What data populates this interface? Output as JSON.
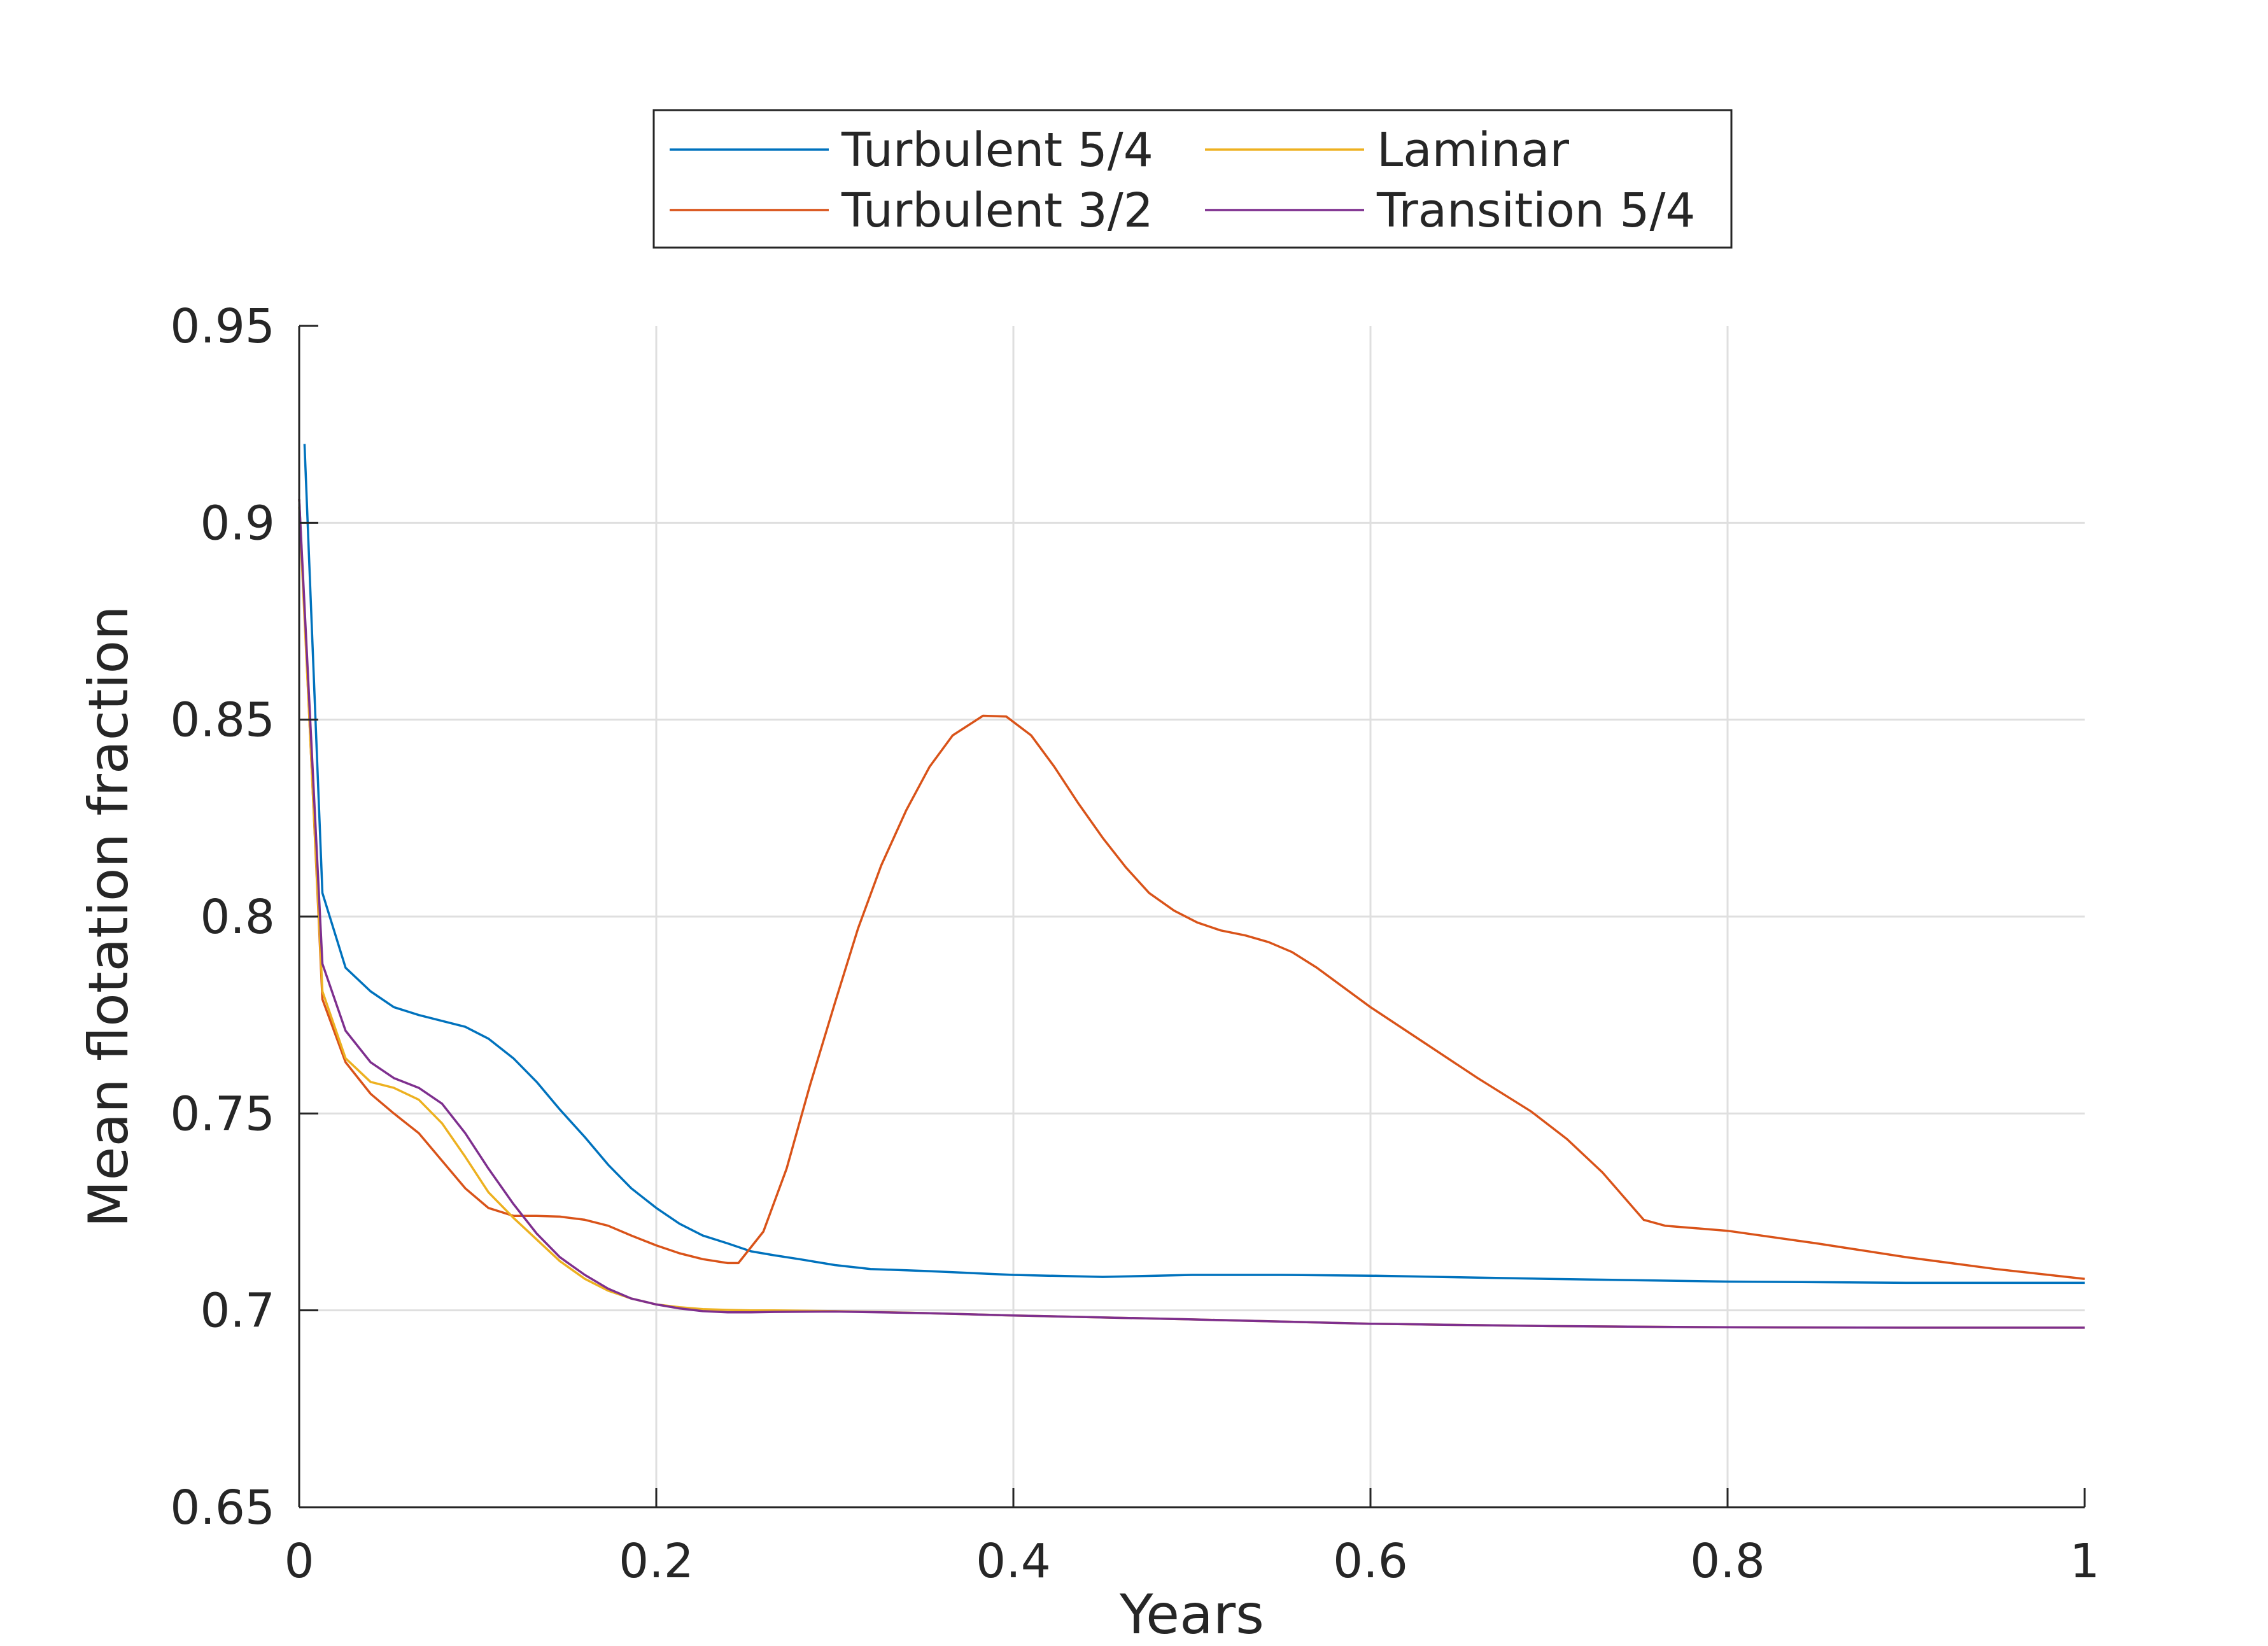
{
  "chart_data": {
    "type": "line",
    "title": "",
    "xlabel": "Years",
    "ylabel": "Mean flotation fraction",
    "xlim": [
      0,
      1
    ],
    "ylim": [
      0.65,
      0.95
    ],
    "grid": true,
    "legend_placement": "top-center (outside plot)",
    "legend_columns": 2,
    "x_ticks": [
      0,
      0.2,
      0.4,
      0.6,
      0.8,
      1
    ],
    "x_tick_labels": [
      "0",
      "0.2",
      "0.4",
      "0.6",
      "0.8",
      "1"
    ],
    "y_ticks": [
      0.65,
      0.7,
      0.75,
      0.8,
      0.85,
      0.9,
      0.95
    ],
    "y_tick_labels": [
      "0.65",
      "0.7",
      "0.75",
      "0.8",
      "0.85",
      "0.9",
      "0.95"
    ],
    "series": [
      {
        "name": "Turbulent 5/4",
        "color": "#0072bd",
        "x": [
          0.003,
          0.013,
          0.026,
          0.04,
          0.053,
          0.067,
          0.08,
          0.093,
          0.106,
          0.12,
          0.133,
          0.146,
          0.16,
          0.173,
          0.186,
          0.2,
          0.213,
          0.226,
          0.24,
          0.253,
          0.266,
          0.28,
          0.3,
          0.32,
          0.35,
          0.4,
          0.45,
          0.5,
          0.55,
          0.6,
          0.7,
          0.8,
          0.9,
          1.0
        ],
        "y": [
          0.92,
          0.806,
          0.787,
          0.781,
          0.777,
          0.775,
          0.7735,
          0.772,
          0.769,
          0.764,
          0.758,
          0.751,
          0.744,
          0.737,
          0.731,
          0.726,
          0.722,
          0.719,
          0.717,
          0.715,
          0.714,
          0.713,
          0.7115,
          0.7105,
          0.71,
          0.709,
          0.7085,
          0.709,
          0.709,
          0.7088,
          0.708,
          0.7073,
          0.707,
          0.707
        ]
      },
      {
        "name": "Turbulent 3/2",
        "color": "#d95319",
        "x": [
          0.0,
          0.013,
          0.026,
          0.04,
          0.053,
          0.067,
          0.08,
          0.093,
          0.106,
          0.12,
          0.133,
          0.146,
          0.16,
          0.173,
          0.186,
          0.2,
          0.213,
          0.226,
          0.24,
          0.246,
          0.26,
          0.273,
          0.286,
          0.3,
          0.313,
          0.326,
          0.34,
          0.353,
          0.366,
          0.383,
          0.396,
          0.41,
          0.423,
          0.436,
          0.45,
          0.463,
          0.476,
          0.49,
          0.503,
          0.516,
          0.53,
          0.543,
          0.556,
          0.57,
          0.6,
          0.63,
          0.66,
          0.69,
          0.71,
          0.73,
          0.753,
          0.765,
          0.8,
          0.85,
          0.9,
          0.95,
          1.0
        ],
        "y": [
          0.906,
          0.779,
          0.763,
          0.755,
          0.75,
          0.745,
          0.738,
          0.731,
          0.726,
          0.724,
          0.724,
          0.7238,
          0.723,
          0.7215,
          0.719,
          0.7165,
          0.7145,
          0.713,
          0.712,
          0.712,
          0.72,
          0.736,
          0.757,
          0.778,
          0.797,
          0.813,
          0.827,
          0.838,
          0.846,
          0.851,
          0.8508,
          0.846,
          0.838,
          0.829,
          0.82,
          0.8125,
          0.806,
          0.8015,
          0.7985,
          0.7965,
          0.7952,
          0.7935,
          0.791,
          0.787,
          0.777,
          0.768,
          0.759,
          0.7505,
          0.7435,
          0.735,
          0.723,
          0.7215,
          0.7202,
          0.717,
          0.7135,
          0.7105,
          0.708
        ]
      },
      {
        "name": "Laminar",
        "color": "#edb120",
        "x": [
          0.0,
          0.013,
          0.026,
          0.04,
          0.053,
          0.067,
          0.08,
          0.093,
          0.106,
          0.12,
          0.133,
          0.146,
          0.16,
          0.173,
          0.186,
          0.2,
          0.213,
          0.226,
          0.24,
          0.253,
          0.266,
          0.3,
          0.35,
          0.4,
          0.5,
          0.6,
          0.7,
          0.8,
          0.9,
          1.0
        ],
        "y": [
          0.904,
          0.781,
          0.764,
          0.758,
          0.7565,
          0.7535,
          0.7475,
          0.739,
          0.73,
          0.7235,
          0.718,
          0.7125,
          0.708,
          0.705,
          0.703,
          0.7015,
          0.7008,
          0.7003,
          0.7001,
          0.7,
          0.7,
          0.6998,
          0.6993,
          0.6987,
          0.6977,
          0.6966,
          0.696,
          0.6957,
          0.6956,
          0.6956
        ]
      },
      {
        "name": "Transition 5/4",
        "color": "#7e2f8e",
        "x": [
          0.0,
          0.013,
          0.026,
          0.04,
          0.053,
          0.067,
          0.08,
          0.093,
          0.106,
          0.12,
          0.133,
          0.146,
          0.16,
          0.173,
          0.186,
          0.2,
          0.213,
          0.226,
          0.24,
          0.253,
          0.266,
          0.3,
          0.35,
          0.4,
          0.5,
          0.6,
          0.7,
          0.8,
          0.9,
          1.0
        ],
        "y": [
          0.906,
          0.788,
          0.771,
          0.763,
          0.759,
          0.7565,
          0.7525,
          0.745,
          0.736,
          0.727,
          0.7195,
          0.7135,
          0.709,
          0.7055,
          0.703,
          0.7015,
          0.7005,
          0.6998,
          0.6995,
          0.6995,
          0.6996,
          0.6997,
          0.6993,
          0.6987,
          0.6977,
          0.6966,
          0.696,
          0.6957,
          0.6956,
          0.6956
        ]
      }
    ]
  }
}
